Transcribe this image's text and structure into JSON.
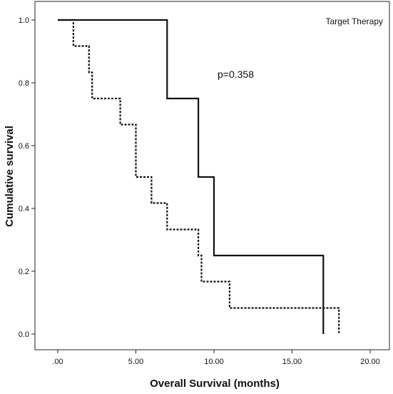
{
  "chart_data": {
    "type": "line",
    "subtype": "kaplan-meier step curve",
    "title": "",
    "corner_label": "Target Therapy",
    "annotation": "p=0.358",
    "xlabel": "Overall Survival (months)",
    "ylabel": "Cumulative survival",
    "xlim": [
      0,
      20
    ],
    "ylim": [
      0,
      1
    ],
    "x_ticks": [
      0,
      5,
      10,
      15,
      20
    ],
    "x_tick_labels": [
      ".00",
      "5.00",
      "10.00",
      "15.00",
      "20.00"
    ],
    "y_ticks": [
      0,
      0.2,
      0.4,
      0.6,
      0.8,
      1.0
    ],
    "y_tick_labels": [
      "0.0",
      "0.2",
      "0.4",
      "0.6",
      "0.8",
      "1.0"
    ],
    "grid": false,
    "legend": "none",
    "series": [
      {
        "style": "solid",
        "color": "#111111",
        "x": [
          0,
          7,
          7,
          9,
          9,
          10,
          10,
          17,
          17
        ],
        "y": [
          1.0,
          1.0,
          0.75,
          0.75,
          0.5,
          0.5,
          0.25,
          0.25,
          0.0
        ]
      },
      {
        "style": "dotted",
        "color": "#111111",
        "x": [
          0,
          1,
          1,
          2,
          2,
          2.2,
          2.2,
          4,
          4,
          5,
          5,
          6,
          6,
          7,
          7,
          9,
          9,
          9.2,
          9.2,
          11,
          11,
          18,
          18
        ],
        "y": [
          1.0,
          1.0,
          0.917,
          0.917,
          0.833,
          0.833,
          0.75,
          0.75,
          0.667,
          0.667,
          0.5,
          0.5,
          0.417,
          0.417,
          0.333,
          0.333,
          0.25,
          0.25,
          0.167,
          0.167,
          0.083,
          0.083,
          0.0
        ]
      }
    ]
  }
}
